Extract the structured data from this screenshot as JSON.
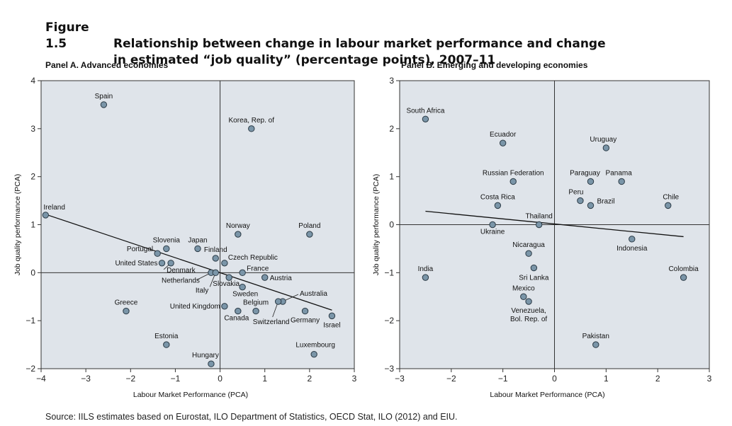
{
  "figure": {
    "number": "Figure 1.5",
    "title_line1": "Relationship between change in labour market performance and change",
    "title_line2": "in estimated “job quality” (percentage points), 2007–11"
  },
  "source": "Source: IILS estimates based on Eurostat, ILO Department of Statistics, OECD Stat, ILO (2012) and EIU.",
  "colors": {
    "panel_bg": "#dfe4ea",
    "point_fill": "#7a95a8",
    "point_stroke": "#2b3a45",
    "axis": "#333333"
  },
  "chart_data": [
    {
      "type": "scatter",
      "title": "Panel A. Advanced economies",
      "xlabel": "Labour Market Performance (PCA)",
      "ylabel": "Job quality performance (PCA)",
      "xlim": [
        -4,
        3
      ],
      "ylim": [
        -2,
        4
      ],
      "xticks": [
        "−4",
        "−3",
        "−2",
        "−1",
        "0",
        "1",
        "2",
        "3"
      ],
      "yticks": [
        "−2",
        "−1",
        "0",
        "1",
        "2",
        "3",
        "4"
      ],
      "trendline": {
        "x": [
          -3.85,
          2.5
        ],
        "y": [
          1.2,
          -0.78
        ]
      },
      "points": [
        {
          "label": "Spain",
          "x": -2.6,
          "y": 3.5
        },
        {
          "label": "Korea, Rep. of",
          "x": 0.7,
          "y": 3.0
        },
        {
          "label": "Ireland",
          "x": -3.9,
          "y": 1.2
        },
        {
          "label": "Norway",
          "x": 0.4,
          "y": 0.8
        },
        {
          "label": "Poland",
          "x": 2.0,
          "y": 0.8
        },
        {
          "label": "Slovenia",
          "x": -1.2,
          "y": 0.5
        },
        {
          "label": "Japan",
          "x": -0.5,
          "y": 0.5
        },
        {
          "label": "Portugal",
          "x": -1.4,
          "y": 0.4
        },
        {
          "label": "Finland",
          "x": -0.1,
          "y": 0.3
        },
        {
          "label": "United States",
          "x": -1.3,
          "y": 0.2
        },
        {
          "label": "Denmark",
          "x": -1.1,
          "y": 0.2
        },
        {
          "label": "Czech Republic",
          "x": 0.1,
          "y": 0.2
        },
        {
          "label": "France",
          "x": 0.5,
          "y": 0.0
        },
        {
          "label": "Netherlands",
          "x": -0.2,
          "y": 0.0
        },
        {
          "label": "Italy",
          "x": -0.1,
          "y": 0.0
        },
        {
          "label": "Slovakia",
          "x": 0.2,
          "y": -0.1
        },
        {
          "label": "Austria",
          "x": 1.0,
          "y": -0.1
        },
        {
          "label": "Sweden",
          "x": 0.5,
          "y": -0.3
        },
        {
          "label": "Australia",
          "x": 1.4,
          "y": -0.6
        },
        {
          "label": "Greece",
          "x": -2.1,
          "y": -0.8
        },
        {
          "label": "United Kingdom",
          "x": 0.1,
          "y": -0.7
        },
        {
          "label": "Belgium",
          "x": 0.8,
          "y": -0.8
        },
        {
          "label": "Canada",
          "x": 0.4,
          "y": -0.8
        },
        {
          "label": "Switzerland",
          "x": 1.3,
          "y": -0.6
        },
        {
          "label": "Germany",
          "x": 1.9,
          "y": -0.8
        },
        {
          "label": "Israel",
          "x": 2.5,
          "y": -0.9
        },
        {
          "label": "Estonia",
          "x": -1.2,
          "y": -1.5
        },
        {
          "label": "Luxembourg",
          "x": 2.1,
          "y": -1.7
        },
        {
          "label": "Hungary",
          "x": -0.2,
          "y": -1.9
        }
      ]
    },
    {
      "type": "scatter",
      "title": "Panel B. Emerging and developing economies",
      "xlabel": "Labour Market Performance (PCA)",
      "ylabel": "Job quality performance (PCA)",
      "xlim": [
        -3,
        3
      ],
      "ylim": [
        -3,
        3
      ],
      "xticks": [
        "−3",
        "−2",
        "−1",
        "0",
        "1",
        "2",
        "3"
      ],
      "yticks": [
        "−3",
        "−2",
        "−1",
        "0",
        "1",
        "2",
        "3"
      ],
      "trendline": {
        "x": [
          -2.5,
          2.5
        ],
        "y": [
          0.28,
          -0.25
        ]
      },
      "points": [
        {
          "label": "South Africa",
          "x": -2.5,
          "y": 2.2
        },
        {
          "label": "Ecuador",
          "x": -1.0,
          "y": 1.7
        },
        {
          "label": "Uruguay",
          "x": 1.0,
          "y": 1.6
        },
        {
          "label": "Russian Federation",
          "x": -0.8,
          "y": 0.9
        },
        {
          "label": "Paraguay",
          "x": 0.7,
          "y": 0.9
        },
        {
          "label": "Panama",
          "x": 1.3,
          "y": 0.9
        },
        {
          "label": "Peru",
          "x": 0.5,
          "y": 0.5
        },
        {
          "label": "Brazil",
          "x": 0.7,
          "y": 0.4
        },
        {
          "label": "Costa Rica",
          "x": -1.1,
          "y": 0.4
        },
        {
          "label": "Chile",
          "x": 2.2,
          "y": 0.4
        },
        {
          "label": "Thailand",
          "x": -0.3,
          "y": 0.0
        },
        {
          "label": "Ukraine",
          "x": -1.2,
          "y": 0.0
        },
        {
          "label": "Indonesia",
          "x": 1.5,
          "y": -0.3
        },
        {
          "label": "Nicaragua",
          "x": -0.5,
          "y": -0.6
        },
        {
          "label": "Sri Lanka",
          "x": -0.4,
          "y": -0.9
        },
        {
          "label": "India",
          "x": -2.5,
          "y": -1.1
        },
        {
          "label": "Colombia",
          "x": 2.5,
          "y": -1.1
        },
        {
          "label": "Mexico",
          "x": -0.6,
          "y": -1.5
        },
        {
          "label": "Venezuela, Bol. Rep. of",
          "x": -0.5,
          "y": -1.6
        },
        {
          "label": "Pakistan",
          "x": 0.8,
          "y": -2.5
        }
      ]
    }
  ]
}
